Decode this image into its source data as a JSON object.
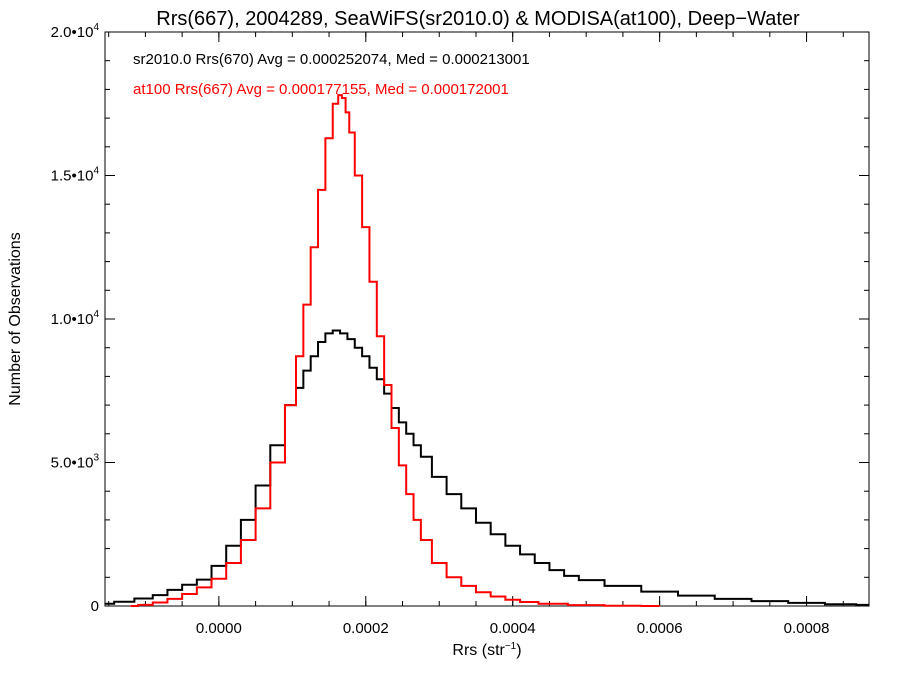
{
  "chart_data": {
    "type": "step-histogram",
    "title": "Rrs(667), 2004289, SeaWiFS(sr2010.0) & MODISA(at100), Deep−Water",
    "xlabel": "Rrs (str",
    "xlabel_sup": "−1",
    "xlabel_suffix": ")",
    "ylabel": "Number of Observations",
    "xlim": [
      -0.000155,
      0.000885
    ],
    "ylim": [
      0,
      20000
    ],
    "x_ticks": [
      {
        "value": 0.0,
        "label": "0.0000"
      },
      {
        "value": 0.0002,
        "label": "0.0002"
      },
      {
        "value": 0.0004,
        "label": "0.0004"
      },
      {
        "value": 0.0006,
        "label": "0.0006"
      },
      {
        "value": 0.0008,
        "label": "0.0008"
      }
    ],
    "y_ticks": [
      {
        "value": 0,
        "label": "0",
        "sup": ""
      },
      {
        "value": 5000,
        "label": "5.0•10",
        "sup": "3"
      },
      {
        "value": 10000,
        "label": "1.0•10",
        "sup": "4"
      },
      {
        "value": 15000,
        "label": "1.5•10",
        "sup": "4"
      },
      {
        "value": 20000,
        "label": "2.0•10",
        "sup": "4"
      }
    ],
    "series": [
      {
        "name": "sr2010.0 Rrs(670)",
        "label": "sr2010.0 Rrs(670) Avg = 0.000252074, Med = 0.000213001",
        "color": "#000000",
        "x": [
          -0.000155,
          -0.00013,
          -0.0001,
          -8e-05,
          -6e-05,
          -4e-05,
          -2e-05,
          0.0,
          2e-05,
          4e-05,
          6e-05,
          8e-05,
          0.0001,
          0.00011,
          0.00012,
          0.00013,
          0.00014,
          0.00015,
          0.00016,
          0.00017,
          0.00018,
          0.00019,
          0.0002,
          0.00021,
          0.00022,
          0.00023,
          0.00024,
          0.00025,
          0.00026,
          0.00027,
          0.00028,
          0.0003,
          0.00032,
          0.00034,
          0.00036,
          0.00038,
          0.0004,
          0.00042,
          0.00044,
          0.00046,
          0.00048,
          0.0005,
          0.00055,
          0.0006,
          0.00065,
          0.0007,
          0.00075,
          0.0008,
          0.00085,
          0.000885
        ],
        "y": [
          80,
          150,
          260,
          380,
          560,
          740,
          920,
          1400,
          2100,
          3000,
          4200,
          5600,
          7000,
          7600,
          8200,
          8700,
          9200,
          9500,
          9600,
          9500,
          9300,
          9000,
          8700,
          8300,
          7900,
          7400,
          6900,
          6400,
          6000,
          5600,
          5200,
          4500,
          3900,
          3400,
          2900,
          2500,
          2100,
          1800,
          1500,
          1250,
          1050,
          900,
          700,
          500,
          360,
          250,
          170,
          110,
          60,
          40
        ]
      },
      {
        "name": "at100 Rrs(667)",
        "label": "at100 Rrs(667) Avg = 0.000177155, Med = 0.000172001",
        "color": "#ff0000",
        "x": [
          -0.00012,
          -0.0001,
          -8e-05,
          -6e-05,
          -4e-05,
          -2e-05,
          0.0,
          2e-05,
          4e-05,
          6e-05,
          8e-05,
          0.0001,
          0.00011,
          0.00012,
          0.00013,
          0.00014,
          0.00015,
          0.00016,
          0.000165,
          0.00017,
          0.000175,
          0.00018,
          0.00019,
          0.0002,
          0.00021,
          0.00022,
          0.00023,
          0.00024,
          0.00025,
          0.00026,
          0.00027,
          0.00028,
          0.0003,
          0.00032,
          0.00034,
          0.00036,
          0.00038,
          0.0004,
          0.00042,
          0.00045,
          0.0005,
          0.00055,
          0.0006
        ],
        "y": [
          0,
          40,
          120,
          250,
          420,
          650,
          950,
          1500,
          2300,
          3400,
          5000,
          7000,
          8700,
          10500,
          12500,
          14500,
          16300,
          17500,
          17800,
          17700,
          17200,
          16500,
          15000,
          13200,
          11300,
          9400,
          7700,
          6200,
          4900,
          3900,
          3000,
          2300,
          1500,
          1000,
          700,
          480,
          330,
          220,
          140,
          80,
          30,
          10,
          0
        ]
      }
    ]
  }
}
